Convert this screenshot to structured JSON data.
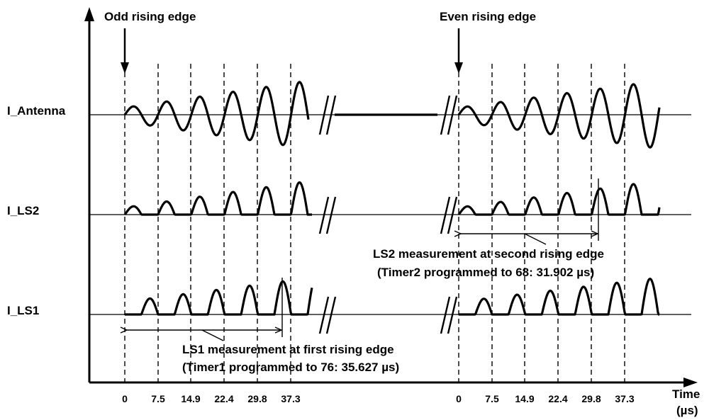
{
  "labels": {
    "odd_edge": "Odd rising edge",
    "even_edge": "Even rising edge",
    "signal_antenna": "I_Antenna",
    "signal_ls2": "I_LS2",
    "signal_ls1": "I_LS1",
    "ls2_note_line1": "LS2 measurement at second rising edge",
    "ls2_note_line2": "(Timer2 programmed to 68: 31.902 µs)",
    "ls1_note_line1": "LS1 measurement at first rising edge",
    "ls1_note_line2": "(Timer1 programmed to 76: 35.627 µs)",
    "time_axis_line1": "Time",
    "time_axis_line2": "(µs)"
  },
  "ticks": {
    "group1": [
      "0",
      "7.5",
      "14.9",
      "22.4",
      "29.8",
      "37.3"
    ],
    "group2": [
      "0",
      "7.5",
      "14.9",
      "22.4",
      "29.8",
      "37.3"
    ]
  }
}
